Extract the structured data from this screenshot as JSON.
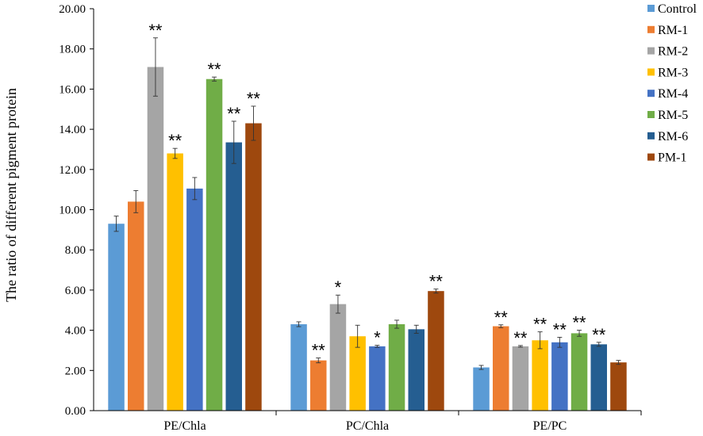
{
  "chart_data": {
    "type": "bar",
    "ylabel": "The ratio of different pigment protein",
    "ylim": [
      0,
      20
    ],
    "yticks": [
      "0.00",
      "2.00",
      "4.00",
      "6.00",
      "8.00",
      "10.00",
      "12.00",
      "14.00",
      "16.00",
      "18.00",
      "20.00"
    ],
    "categories": [
      "PE/Chla",
      "PC/Chla",
      "PE/PC"
    ],
    "legend_position": "right",
    "series": [
      {
        "name": "Control",
        "color": "#5b9bd5",
        "values": [
          9.3,
          4.3,
          2.15
        ],
        "errors": [
          0.38,
          0.12,
          0.1
        ],
        "sig": [
          "",
          "",
          ""
        ]
      },
      {
        "name": "RM-1",
        "color": "#ed7d31",
        "values": [
          10.4,
          2.5,
          4.2
        ],
        "errors": [
          0.55,
          0.12,
          0.07
        ],
        "sig": [
          "",
          "**",
          "**"
        ]
      },
      {
        "name": "RM-2",
        "color": "#a5a5a5",
        "values": [
          17.1,
          5.3,
          3.2
        ],
        "errors": [
          1.45,
          0.45,
          0.04
        ],
        "sig": [
          "**",
          "*",
          "**"
        ]
      },
      {
        "name": "RM-3",
        "color": "#ffc000",
        "values": [
          12.8,
          3.7,
          3.5
        ],
        "errors": [
          0.25,
          0.55,
          0.42
        ],
        "sig": [
          "**",
          "",
          "**"
        ]
      },
      {
        "name": "RM-4",
        "color": "#4472c4",
        "values": [
          11.05,
          3.2,
          3.4
        ],
        "errors": [
          0.55,
          0.05,
          0.25
        ],
        "sig": [
          "",
          "*",
          "**"
        ]
      },
      {
        "name": "RM-5",
        "color": "#70ad47",
        "values": [
          16.5,
          4.3,
          3.85
        ],
        "errors": [
          0.1,
          0.2,
          0.15
        ],
        "sig": [
          "**",
          "",
          "**"
        ]
      },
      {
        "name": "RM-6",
        "color": "#255e91",
        "values": [
          13.35,
          4.05,
          3.3
        ],
        "errors": [
          1.05,
          0.2,
          0.1
        ],
        "sig": [
          "**",
          "",
          "**"
        ]
      },
      {
        "name": "PM-1",
        "color": "#9e480e",
        "values": [
          14.3,
          5.95,
          2.4
        ],
        "errors": [
          0.85,
          0.1,
          0.1
        ],
        "sig": [
          "**",
          "**",
          ""
        ]
      }
    ]
  }
}
